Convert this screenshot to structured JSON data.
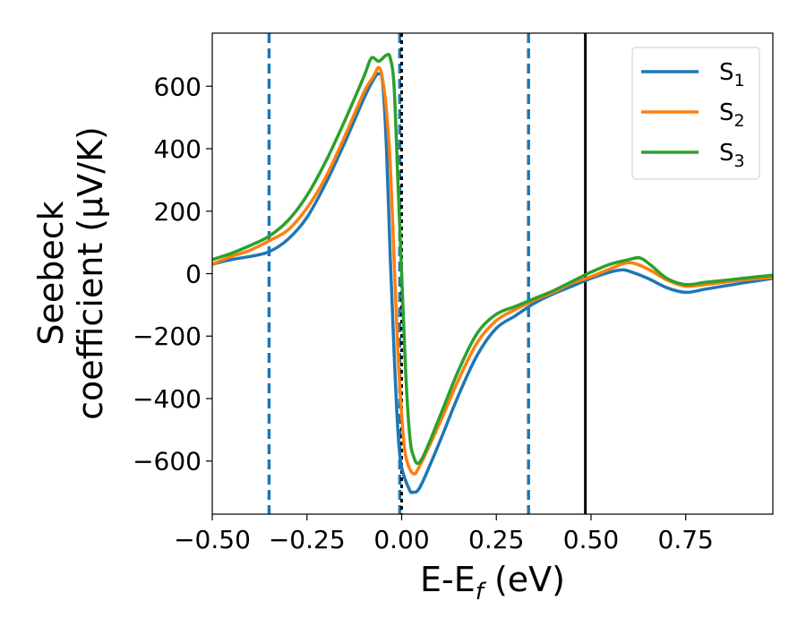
{
  "chart_data": {
    "type": "line",
    "xlabel": {
      "main": "E-E",
      "sub": "f",
      "unit": " (eV)"
    },
    "ylabel": {
      "line1": "Seebeck",
      "line2": "coefficient  (μV/K)"
    },
    "xlim": [
      -0.5,
      0.98
    ],
    "ylim": [
      -770,
      770
    ],
    "xticks": [
      -0.5,
      -0.25,
      0.0,
      0.25,
      0.5,
      0.75
    ],
    "xtick_labels": [
      "−0.50",
      "−0.25",
      "0.00",
      "0.25",
      "0.50",
      "0.75"
    ],
    "yticks": [
      600,
      400,
      200,
      0,
      -200,
      -400,
      -600
    ],
    "ytick_labels": [
      "600",
      "400",
      "200",
      "0",
      "−200",
      "−400",
      "−600"
    ],
    "grid": false,
    "legend_position": "top-right",
    "vlines": [
      {
        "x": -0.35,
        "style": "dashed",
        "color": "#1f77b4"
      },
      {
        "x": 0.335,
        "style": "dashed",
        "color": "#1f77b4"
      },
      {
        "x": -0.005,
        "style": "dashed",
        "color": "#1f77b4"
      },
      {
        "x": 0.0,
        "style": "dotted",
        "color": "#000000"
      },
      {
        "x": 0.485,
        "style": "solid",
        "color": "#000000"
      }
    ],
    "series": [
      {
        "name": "S",
        "sub": "1",
        "color": "#1f77b4",
        "points": [
          [
            -0.5,
            30
          ],
          [
            -0.45,
            45
          ],
          [
            -0.4,
            55
          ],
          [
            -0.35,
            70
          ],
          [
            -0.3,
            110
          ],
          [
            -0.25,
            180
          ],
          [
            -0.2,
            290
          ],
          [
            -0.15,
            420
          ],
          [
            -0.1,
            560
          ],
          [
            -0.075,
            620
          ],
          [
            -0.06,
            640
          ],
          [
            -0.05,
            610
          ],
          [
            -0.04,
            400
          ],
          [
            -0.03,
            50
          ],
          [
            -0.02,
            -250
          ],
          [
            -0.01,
            -500
          ],
          [
            0.0,
            -620
          ],
          [
            0.02,
            -690
          ],
          [
            0.03,
            -700
          ],
          [
            0.05,
            -680
          ],
          [
            0.1,
            -540
          ],
          [
            0.15,
            -390
          ],
          [
            0.2,
            -260
          ],
          [
            0.25,
            -175
          ],
          [
            0.3,
            -135
          ],
          [
            0.35,
            -95
          ],
          [
            0.4,
            -65
          ],
          [
            0.45,
            -40
          ],
          [
            0.5,
            -15
          ],
          [
            0.55,
            5
          ],
          [
            0.58,
            12
          ],
          [
            0.6,
            8
          ],
          [
            0.65,
            -15
          ],
          [
            0.7,
            -45
          ],
          [
            0.75,
            -60
          ],
          [
            0.8,
            -50
          ],
          [
            0.85,
            -40
          ],
          [
            0.9,
            -30
          ],
          [
            0.98,
            -15
          ]
        ]
      },
      {
        "name": "S",
        "sub": "2",
        "color": "#ff7f0e",
        "points": [
          [
            -0.5,
            30
          ],
          [
            -0.45,
            55
          ],
          [
            -0.4,
            75
          ],
          [
            -0.35,
            105
          ],
          [
            -0.3,
            140
          ],
          [
            -0.25,
            210
          ],
          [
            -0.2,
            310
          ],
          [
            -0.15,
            440
          ],
          [
            -0.1,
            580
          ],
          [
            -0.075,
            630
          ],
          [
            -0.06,
            660
          ],
          [
            -0.05,
            620
          ],
          [
            -0.04,
            520
          ],
          [
            -0.03,
            350
          ],
          [
            -0.02,
            50
          ],
          [
            -0.01,
            -250
          ],
          [
            0.0,
            -450
          ],
          [
            0.01,
            -580
          ],
          [
            0.03,
            -640
          ],
          [
            0.05,
            -610
          ],
          [
            0.1,
            -480
          ],
          [
            0.15,
            -340
          ],
          [
            0.2,
            -220
          ],
          [
            0.25,
            -150
          ],
          [
            0.3,
            -115
          ],
          [
            0.35,
            -85
          ],
          [
            0.4,
            -60
          ],
          [
            0.45,
            -30
          ],
          [
            0.5,
            -10
          ],
          [
            0.55,
            15
          ],
          [
            0.6,
            35
          ],
          [
            0.65,
            15
          ],
          [
            0.7,
            -20
          ],
          [
            0.75,
            -40
          ],
          [
            0.8,
            -35
          ],
          [
            0.85,
            -28
          ],
          [
            0.9,
            -20
          ],
          [
            0.98,
            -12
          ]
        ]
      },
      {
        "name": "S",
        "sub": "3",
        "color": "#2ca02c",
        "points": [
          [
            -0.5,
            45
          ],
          [
            -0.45,
            65
          ],
          [
            -0.4,
            90
          ],
          [
            -0.35,
            120
          ],
          [
            -0.3,
            170
          ],
          [
            -0.25,
            250
          ],
          [
            -0.2,
            360
          ],
          [
            -0.15,
            490
          ],
          [
            -0.1,
            630
          ],
          [
            -0.08,
            690
          ],
          [
            -0.06,
            680
          ],
          [
            -0.04,
            700
          ],
          [
            -0.03,
            690
          ],
          [
            -0.02,
            600
          ],
          [
            -0.01,
            300
          ],
          [
            0.0,
            0
          ],
          [
            0.01,
            -300
          ],
          [
            0.02,
            -500
          ],
          [
            0.03,
            -580
          ],
          [
            0.05,
            -600
          ],
          [
            0.1,
            -460
          ],
          [
            0.15,
            -310
          ],
          [
            0.2,
            -190
          ],
          [
            0.25,
            -130
          ],
          [
            0.3,
            -105
          ],
          [
            0.35,
            -80
          ],
          [
            0.4,
            -55
          ],
          [
            0.45,
            -25
          ],
          [
            0.5,
            5
          ],
          [
            0.55,
            30
          ],
          [
            0.6,
            45
          ],
          [
            0.63,
            50
          ],
          [
            0.66,
            25
          ],
          [
            0.7,
            -15
          ],
          [
            0.75,
            -35
          ],
          [
            0.8,
            -28
          ],
          [
            0.85,
            -22
          ],
          [
            0.9,
            -15
          ],
          [
            0.98,
            -5
          ]
        ]
      }
    ]
  }
}
